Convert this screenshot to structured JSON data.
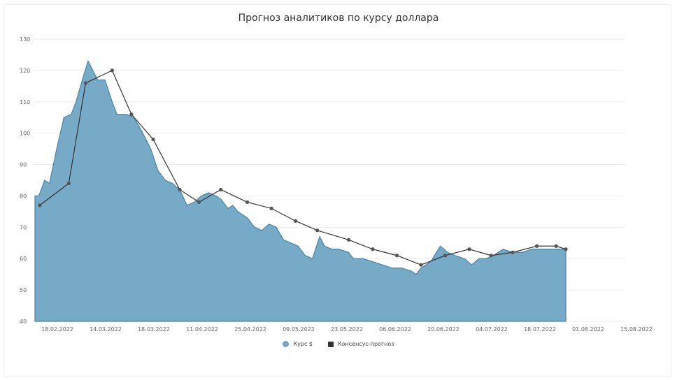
{
  "chart_data": {
    "type": "area",
    "title": "Прогноз аналитиков по курсу доллара",
    "xlabel": "",
    "ylabel": "",
    "ylim": [
      40,
      130
    ],
    "y_ticks": [
      40,
      50,
      60,
      70,
      80,
      90,
      100,
      110,
      120,
      130
    ],
    "y_tick_labels": [
      "40",
      "50",
      "60",
      "70",
      "80",
      "90",
      "100",
      "110",
      "120",
      "130"
    ],
    "x_ticks": [
      "18.02.2022",
      "14.03.2022",
      "18.03.2022",
      "11.04.2022",
      "25.04.2022",
      "09.05.2022",
      "23.05.2022",
      "06.06.2022",
      "20.06.2022",
      "04.07.2022",
      "18.07.2022",
      "01.08.2022",
      "15.08.2022"
    ],
    "grid": true,
    "legend_position": "bottom",
    "series": [
      {
        "name": "Курс $",
        "style": "area",
        "color": "#6fa6c3",
        "x": [
          0,
          1,
          2,
          3,
          4,
          5,
          6,
          7,
          8,
          9,
          10,
          11,
          12
        ],
        "values": [
          [
            0,
            80
          ],
          [
            0.08,
            80
          ],
          [
            0.2,
            85
          ],
          [
            0.3,
            84
          ],
          [
            0.45,
            95
          ],
          [
            0.6,
            105
          ],
          [
            0.75,
            106
          ],
          [
            0.85,
            110
          ],
          [
            1.0,
            118
          ],
          [
            1.1,
            123
          ],
          [
            1.2,
            120
          ],
          [
            1.3,
            117
          ],
          [
            1.45,
            117
          ],
          [
            1.6,
            110
          ],
          [
            1.7,
            106
          ],
          [
            1.9,
            106
          ],
          [
            2.05,
            105
          ],
          [
            2.2,
            101
          ],
          [
            2.4,
            95
          ],
          [
            2.55,
            88
          ],
          [
            2.7,
            85
          ],
          [
            2.85,
            84
          ],
          [
            3.0,
            82
          ],
          [
            3.15,
            77
          ],
          [
            3.3,
            78
          ],
          [
            3.45,
            80
          ],
          [
            3.6,
            81
          ],
          [
            3.75,
            80
          ],
          [
            3.85,
            79
          ],
          [
            4.0,
            76
          ],
          [
            4.1,
            77
          ],
          [
            4.2,
            75
          ],
          [
            4.4,
            73
          ],
          [
            4.55,
            70
          ],
          [
            4.7,
            69
          ],
          [
            4.85,
            71
          ],
          [
            5.0,
            70
          ],
          [
            5.15,
            66
          ],
          [
            5.3,
            65
          ],
          [
            5.45,
            64
          ],
          [
            5.6,
            61
          ],
          [
            5.75,
            60
          ],
          [
            5.9,
            67
          ],
          [
            6.0,
            64
          ],
          [
            6.15,
            63
          ],
          [
            6.3,
            63
          ],
          [
            6.5,
            62
          ],
          [
            6.6,
            60
          ],
          [
            6.8,
            60
          ],
          [
            7.0,
            59
          ],
          [
            7.2,
            58
          ],
          [
            7.4,
            57
          ],
          [
            7.6,
            57
          ],
          [
            7.8,
            56
          ],
          [
            7.9,
            55
          ],
          [
            8.0,
            57
          ],
          [
            8.1,
            58
          ],
          [
            8.2,
            59
          ],
          [
            8.4,
            64
          ],
          [
            8.55,
            62
          ],
          [
            8.7,
            61
          ],
          [
            8.9,
            60
          ],
          [
            9.05,
            58
          ],
          [
            9.2,
            60
          ],
          [
            9.35,
            60
          ],
          [
            9.5,
            61
          ],
          [
            9.7,
            63
          ],
          [
            9.9,
            62
          ],
          [
            10.1,
            62
          ],
          [
            10.3,
            63
          ],
          [
            10.5,
            63
          ],
          [
            10.7,
            63
          ],
          [
            10.9,
            63
          ],
          [
            11.0,
            63
          ]
        ]
      },
      {
        "name": "Консенсус-прогноз",
        "style": "line",
        "color": "#333333",
        "values": [
          [
            0.1,
            77
          ],
          [
            0.7,
            84
          ],
          [
            1.05,
            116
          ],
          [
            1.6,
            120
          ],
          [
            2.0,
            106
          ],
          [
            2.45,
            98
          ],
          [
            3.0,
            82
          ],
          [
            3.4,
            78
          ],
          [
            3.85,
            82
          ],
          [
            4.4,
            78
          ],
          [
            4.9,
            76
          ],
          [
            5.4,
            72
          ],
          [
            5.85,
            69
          ],
          [
            6.5,
            66
          ],
          [
            7.0,
            63
          ],
          [
            7.5,
            61
          ],
          [
            8.0,
            58
          ],
          [
            8.5,
            61
          ],
          [
            9.0,
            63
          ],
          [
            9.45,
            61
          ],
          [
            9.9,
            62
          ],
          [
            10.4,
            64
          ],
          [
            10.8,
            64
          ],
          [
            11.0,
            63
          ]
        ]
      }
    ]
  }
}
